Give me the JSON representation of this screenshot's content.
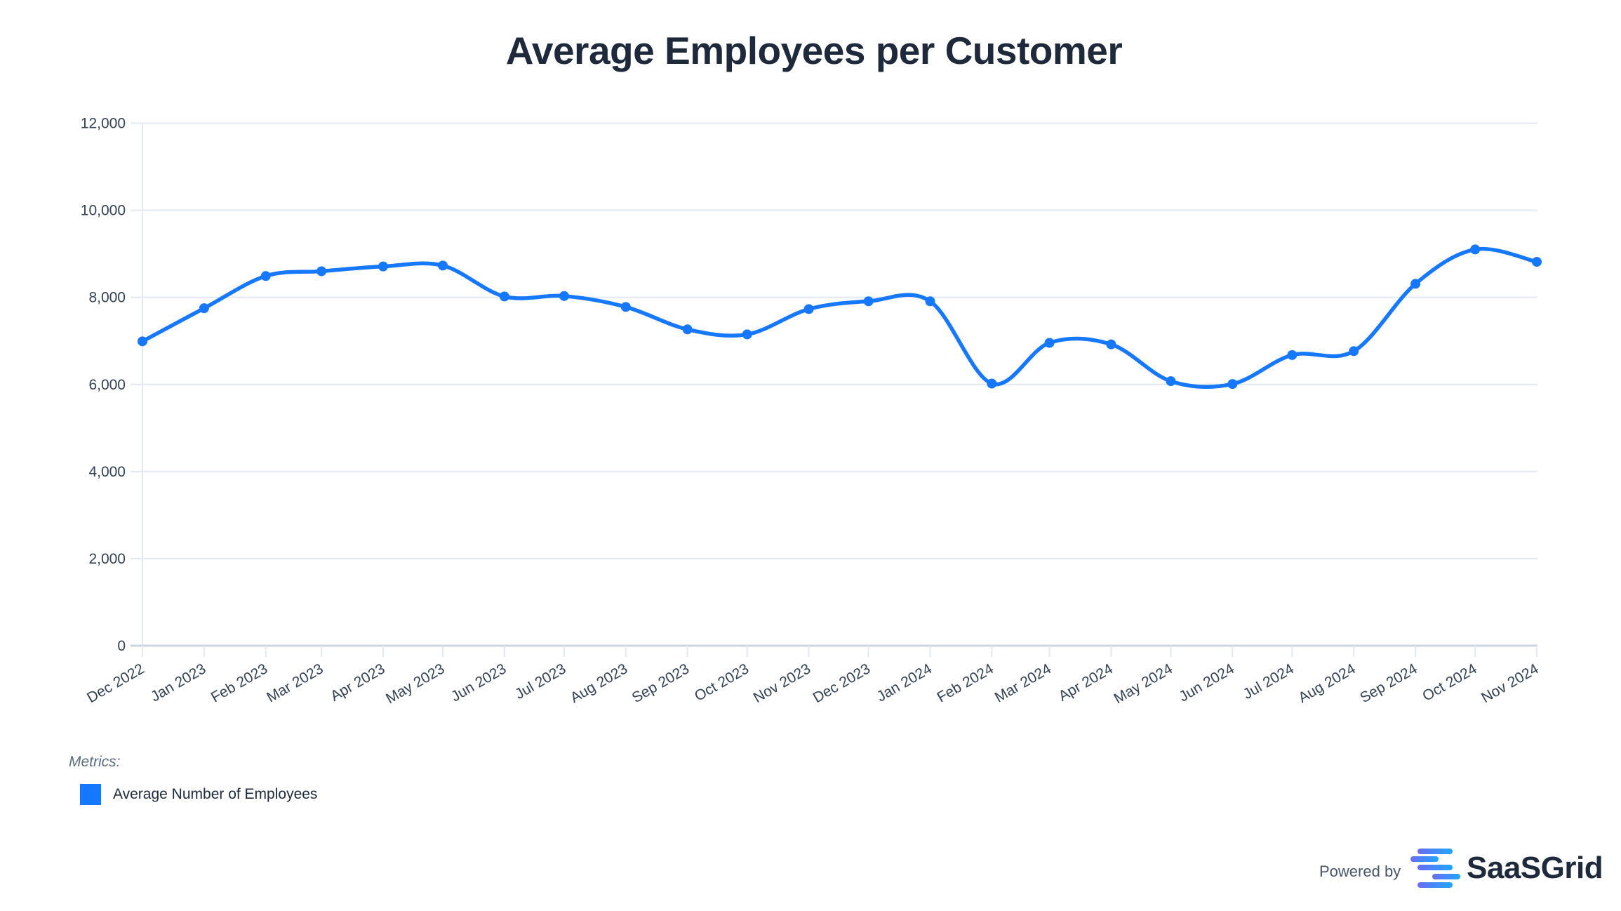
{
  "chart_data": {
    "type": "line",
    "title": "Average Employees per Customer",
    "xlabel": "",
    "ylabel": "",
    "ylim": [
      0,
      12000
    ],
    "yticks": [
      0,
      2000,
      4000,
      6000,
      8000,
      10000,
      12000
    ],
    "ytick_labels": [
      "0",
      "2,000",
      "4,000",
      "6,000",
      "8,000",
      "10,000",
      "12,000"
    ],
    "grid": true,
    "x": [
      "Dec 2022",
      "Jan 2023",
      "Feb 2023",
      "Mar 2023",
      "Apr 2023",
      "May 2023",
      "Jun 2023",
      "Jul 2023",
      "Aug 2023",
      "Sep 2023",
      "Oct 2023",
      "Nov 2023",
      "Dec 2023",
      "Jan 2024",
      "Feb 2024",
      "Mar 2024",
      "Apr 2024",
      "May 2024",
      "Jun 2024",
      "Jul 2024",
      "Aug 2024",
      "Sep 2024",
      "Oct 2024",
      "Nov 2024"
    ],
    "x_dates": [
      "2022-12-01",
      "2023-01-01",
      "2023-02-01",
      "2023-03-01",
      "2023-04-01",
      "2023-05-01",
      "2023-06-01",
      "2023-07-01",
      "2023-08-01",
      "2023-09-01",
      "2023-10-01",
      "2023-11-01",
      "2023-12-01",
      "2024-01-01",
      "2024-02-01",
      "2024-03-01",
      "2024-04-01",
      "2024-05-01",
      "2024-06-01",
      "2024-07-01",
      "2024-08-01",
      "2024-09-01",
      "2024-10-01",
      "2024-11-01"
    ],
    "series": [
      {
        "name": "Average Number of Employees",
        "color": "#1677ff",
        "values": [
          6990,
          7750,
          8490,
          8600,
          8710,
          8730,
          8020,
          8030,
          7780,
          7265,
          7150,
          7730,
          7910,
          7910,
          6020,
          6955,
          6920,
          6075,
          6010,
          6675,
          6765,
          8310,
          9100,
          8815
        ]
      }
    ],
    "legend_placement": "bottom-left"
  },
  "legend": {
    "heading": "Metrics:",
    "items": [
      {
        "label": "Average Number of Employees",
        "color": "#1677ff"
      }
    ]
  },
  "footer": {
    "powered_by": "Powered by",
    "brand": "SaaSGrid",
    "logo_icon": "saasgrid-logo-icon"
  }
}
